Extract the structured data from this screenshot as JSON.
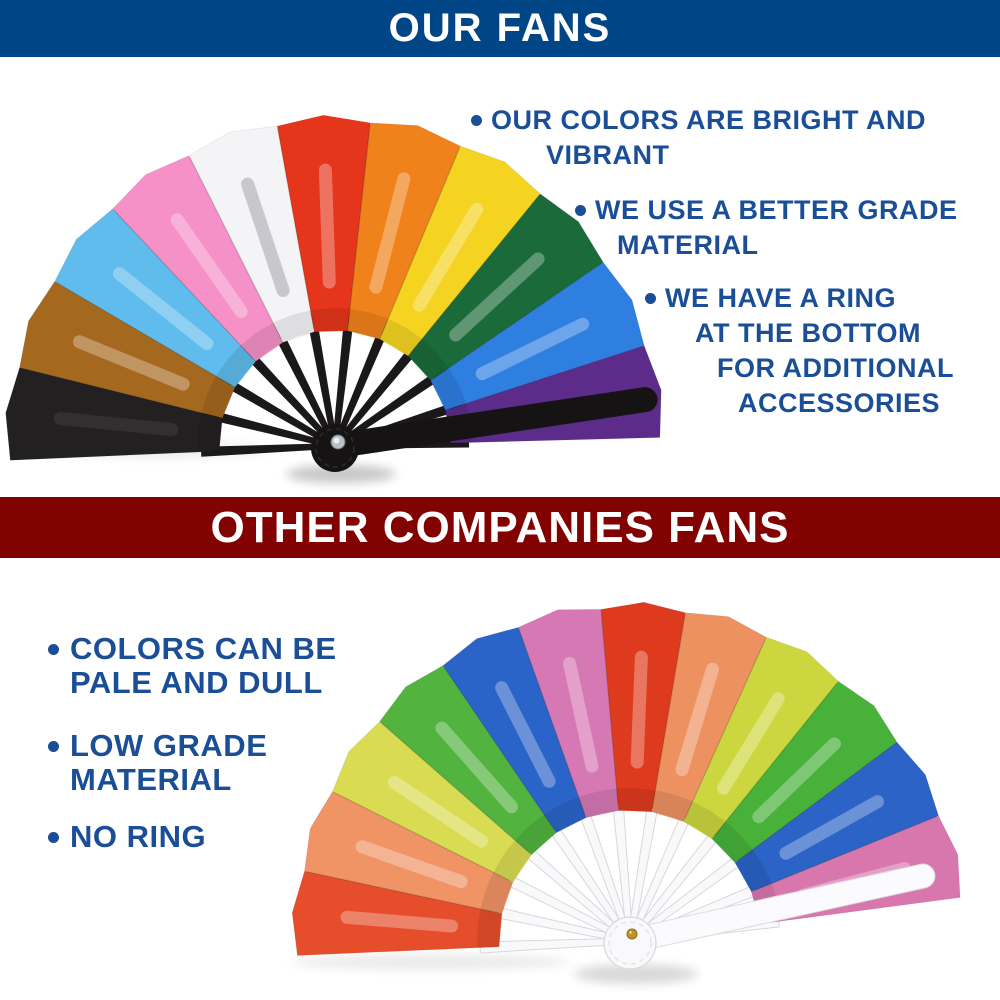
{
  "bullet_text_color": "#1a4e96",
  "ours": {
    "banner_label": "OUR FANS",
    "banner_color": "#004687",
    "points": [
      {
        "lines": [
          "OUR COLORS ARE BRIGHT AND",
          "VIBRANT"
        ]
      },
      {
        "lines": [
          "WE USE A BETTER GRADE",
          "MATERIAL"
        ]
      },
      {
        "lines": [
          "WE HAVE A RING",
          "AT THE BOTTOM",
          "FOR ADDITIONAL",
          "ACCESSORIES"
        ]
      }
    ],
    "fan": {
      "segment_colors": [
        "#232021",
        "#a5681f",
        "#5fbcec",
        "#f591c6",
        "#f4f3f6",
        "#e5351b",
        "#f0821b",
        "#f5d321",
        "#1b6b3a",
        "#2f7fe1",
        "#5d2c8b"
      ],
      "rib_color": "#1b181a",
      "rib_stroke": "none",
      "guard_color": "#161314",
      "guard_stroke": "none",
      "pivot_fill": "#161314",
      "pivot_stroke": "none",
      "pin_fill": "#b9bfc6",
      "pin_stroke": "#6d7279"
    }
  },
  "others": {
    "banner_label": "OTHER COMPANIES FANS",
    "banner_color": "#820202",
    "points": [
      {
        "lines": [
          "COLORS CAN BE",
          "PALE AND DULL"
        ]
      },
      {
        "lines": [
          "LOW GRADE",
          "MATERIAL"
        ]
      },
      {
        "lines": [
          "NO RING"
        ]
      }
    ],
    "fan": {
      "segment_colors": [
        "#e64d2b",
        "#f09365",
        "#d9db52",
        "#52b43f",
        "#2b64c8",
        "#d678b4",
        "#de3b1e",
        "#ee9161",
        "#ccd73f",
        "#47b13a",
        "#2b63c6",
        "#d877ae"
      ],
      "rib_color": "#f9f8fa",
      "rib_stroke": "#d9d7dc",
      "guard_color": "#fbfafc",
      "guard_stroke": "#dedce1",
      "pivot_fill": "#f9f8fa",
      "pivot_stroke": "#d8d6db",
      "pin_fill": "#bd9428",
      "pin_stroke": "#8f6d14"
    }
  }
}
